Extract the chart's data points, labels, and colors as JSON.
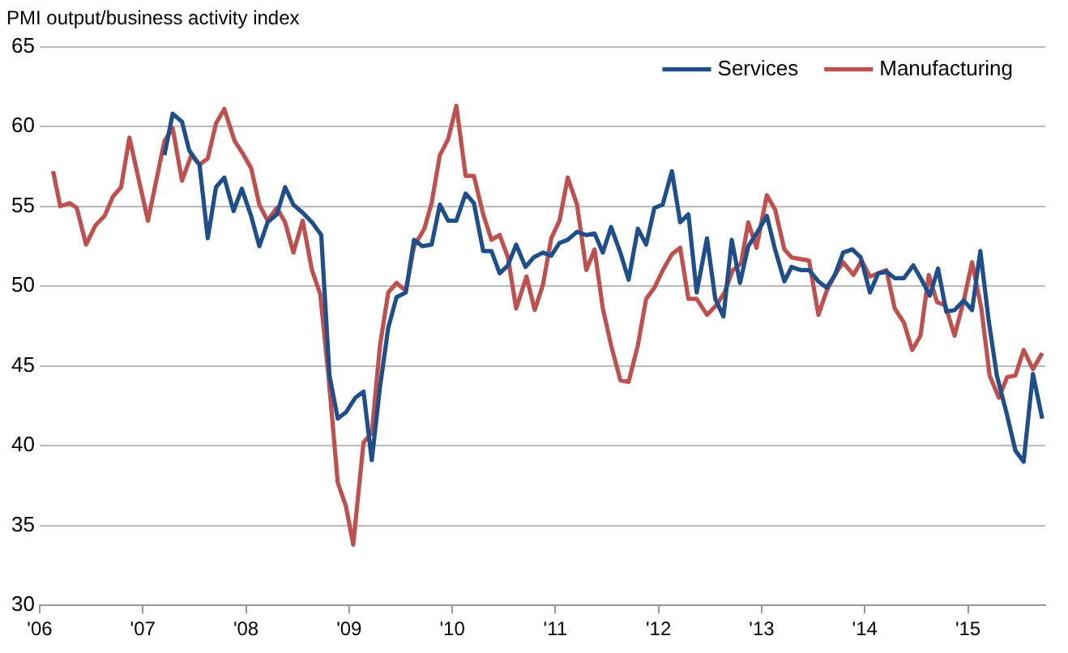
{
  "chart_data": {
    "type": "line",
    "title": "PMI output/business activity index",
    "xlim": [
      2006,
      2015.75
    ],
    "xticks": [
      {
        "value": 2006,
        "label": "'06"
      },
      {
        "value": 2007,
        "label": "'07"
      },
      {
        "value": 2008,
        "label": "'08"
      },
      {
        "value": 2009,
        "label": "'09"
      },
      {
        "value": 2010,
        "label": "'10"
      },
      {
        "value": 2011,
        "label": "'11"
      },
      {
        "value": 2012,
        "label": "'12"
      },
      {
        "value": 2013,
        "label": "'13"
      },
      {
        "value": 2014,
        "label": "'14"
      },
      {
        "value": 2015,
        "label": "'15"
      }
    ],
    "ylim": [
      30,
      65
    ],
    "yticks": [
      30,
      35,
      40,
      45,
      50,
      55,
      60,
      65
    ],
    "grid": "y",
    "legend": "top right",
    "marker": "none",
    "line_style": "solid",
    "series": [
      {
        "name": "Services",
        "color": "#1f4e8c",
        "x": [
          2007.21,
          2007.29,
          2007.38,
          2007.45,
          2007.55,
          2007.63,
          2007.71,
          2007.79,
          2007.88,
          2007.96,
          2008.05,
          2008.13,
          2008.21,
          2008.3,
          2008.38,
          2008.46,
          2008.55,
          2008.64,
          2008.73,
          2008.81,
          2008.89,
          2008.97,
          2009.06,
          2009.14,
          2009.22,
          2009.3,
          2009.38,
          2009.46,
          2009.55,
          2009.63,
          2009.71,
          2009.8,
          2009.88,
          2009.96,
          2010.04,
          2010.13,
          2010.21,
          2010.3,
          2010.38,
          2010.46,
          2010.54,
          2010.62,
          2010.71,
          2010.79,
          2010.88,
          2010.96,
          2011.04,
          2011.12,
          2011.21,
          2011.3,
          2011.38,
          2011.46,
          2011.54,
          2011.63,
          2011.71,
          2011.8,
          2011.88,
          2011.96,
          2012.04,
          2012.13,
          2012.21,
          2012.29,
          2012.37,
          2012.47,
          2012.55,
          2012.63,
          2012.71,
          2012.79,
          2012.87,
          2012.96,
          2013.05,
          2013.13,
          2013.22,
          2013.29,
          2013.38,
          2013.46,
          2013.55,
          2013.63,
          2013.71,
          2013.79,
          2013.88,
          2013.96,
          2014.05,
          2014.13,
          2014.21,
          2014.29,
          2014.38,
          2014.47,
          2014.55,
          2014.63,
          2014.71,
          2014.79,
          2014.87,
          2014.96,
          2015.04,
          2015.12,
          2015.2,
          2015.28,
          2015.38,
          2015.46,
          2015.54,
          2015.63,
          2015.72
        ],
        "values": [
          58.2,
          60.8,
          60.3,
          58.5,
          57.6,
          53.0,
          56.2,
          56.8,
          54.7,
          56.1,
          54.4,
          52.5,
          54.0,
          54.5,
          56.2,
          55.1,
          54.6,
          54.0,
          53.2,
          44.4,
          41.7,
          42.1,
          43.0,
          43.4,
          39.1,
          43.7,
          47.4,
          49.3,
          49.6,
          52.9,
          52.5,
          52.6,
          55.1,
          54.1,
          54.1,
          55.8,
          55.2,
          52.2,
          52.2,
          50.8,
          51.3,
          52.6,
          51.2,
          51.8,
          52.1,
          51.9,
          52.7,
          52.9,
          53.4,
          53.2,
          53.3,
          52.1,
          53.7,
          52.1,
          50.4,
          53.6,
          52.6,
          54.9,
          55.1,
          57.2,
          54.0,
          54.5,
          49.6,
          53.0,
          49.2,
          48.1,
          52.9,
          50.2,
          52.5,
          53.4,
          54.4,
          52.3,
          50.3,
          51.2,
          51.0,
          51.0,
          50.3,
          49.9,
          50.7,
          52.1,
          52.3,
          51.8,
          49.6,
          50.8,
          50.9,
          50.5,
          50.5,
          51.3,
          50.4,
          49.4,
          51.1,
          48.4,
          48.5,
          49.1,
          48.5,
          52.2,
          47.9,
          44.4,
          41.9,
          39.7,
          39.0,
          44.5,
          41.7
        ]
      },
      {
        "name": "Manufacturing",
        "color": "#c0504d",
        "x": [
          2006.13,
          2006.2,
          2006.29,
          2006.36,
          2006.45,
          2006.54,
          2006.63,
          2006.71,
          2006.79,
          2006.87,
          2006.96,
          2007.05,
          2007.14,
          2007.21,
          2007.29,
          2007.38,
          2007.47,
          2007.55,
          2007.63,
          2007.71,
          2007.79,
          2007.89,
          2007.97,
          2008.05,
          2008.13,
          2008.21,
          2008.3,
          2008.38,
          2008.46,
          2008.55,
          2008.64,
          2008.72,
          2008.8,
          2008.89,
          2008.97,
          2009.04,
          2009.14,
          2009.22,
          2009.3,
          2009.38,
          2009.46,
          2009.55,
          2009.63,
          2009.73,
          2009.8,
          2009.88,
          2009.96,
          2010.04,
          2010.13,
          2010.21,
          2010.3,
          2010.38,
          2010.46,
          2010.54,
          2010.62,
          2010.72,
          2010.8,
          2010.88,
          2010.96,
          2011.04,
          2011.12,
          2011.21,
          2011.3,
          2011.38,
          2011.46,
          2011.54,
          2011.63,
          2011.71,
          2011.8,
          2011.88,
          2011.96,
          2012.05,
          2012.13,
          2012.21,
          2012.29,
          2012.37,
          2012.47,
          2012.56,
          2012.64,
          2012.72,
          2012.8,
          2012.87,
          2012.95,
          2013.05,
          2013.13,
          2013.22,
          2013.29,
          2013.37,
          2013.46,
          2013.55,
          2013.63,
          2013.71,
          2013.79,
          2013.89,
          2013.97,
          2014.05,
          2014.13,
          2014.21,
          2014.29,
          2014.38,
          2014.46,
          2014.54,
          2014.62,
          2014.7,
          2014.78,
          2014.87,
          2014.96,
          2015.04,
          2015.13,
          2015.21,
          2015.3,
          2015.38,
          2015.46,
          2015.54,
          2015.63,
          2015.72
        ],
        "values": [
          57.2,
          55.0,
          55.2,
          54.9,
          52.6,
          53.8,
          54.4,
          55.6,
          56.2,
          59.3,
          56.7,
          54.1,
          56.9,
          59.1,
          59.9,
          56.6,
          58.2,
          57.6,
          58.0,
          60.2,
          61.1,
          59.1,
          58.3,
          57.4,
          55.1,
          54.1,
          54.9,
          54.0,
          52.1,
          54.1,
          51.0,
          49.5,
          44.4,
          37.7,
          36.2,
          33.8,
          40.2,
          40.8,
          46.3,
          49.6,
          50.2,
          49.7,
          52.5,
          53.6,
          55.2,
          58.2,
          59.2,
          61.3,
          56.9,
          56.9,
          54.5,
          52.9,
          53.2,
          51.8,
          48.6,
          50.6,
          48.5,
          50.1,
          53.0,
          54.1,
          56.8,
          55.1,
          51.0,
          52.3,
          48.6,
          46.3,
          44.1,
          44.0,
          46.3,
          49.2,
          49.9,
          51.1,
          52.0,
          52.4,
          49.2,
          49.2,
          48.2,
          48.8,
          49.6,
          51.0,
          51.4,
          54.0,
          52.4,
          55.7,
          54.8,
          52.3,
          51.8,
          51.7,
          51.6,
          48.2,
          49.7,
          50.7,
          51.5,
          50.7,
          51.6,
          50.6,
          50.8,
          51.0,
          48.6,
          47.7,
          46.0,
          46.9,
          50.7,
          49.0,
          48.8,
          46.9,
          49.1,
          51.5,
          48.6,
          44.4,
          43.0,
          44.3,
          44.4,
          46.0,
          44.8,
          45.8
        ]
      }
    ]
  }
}
